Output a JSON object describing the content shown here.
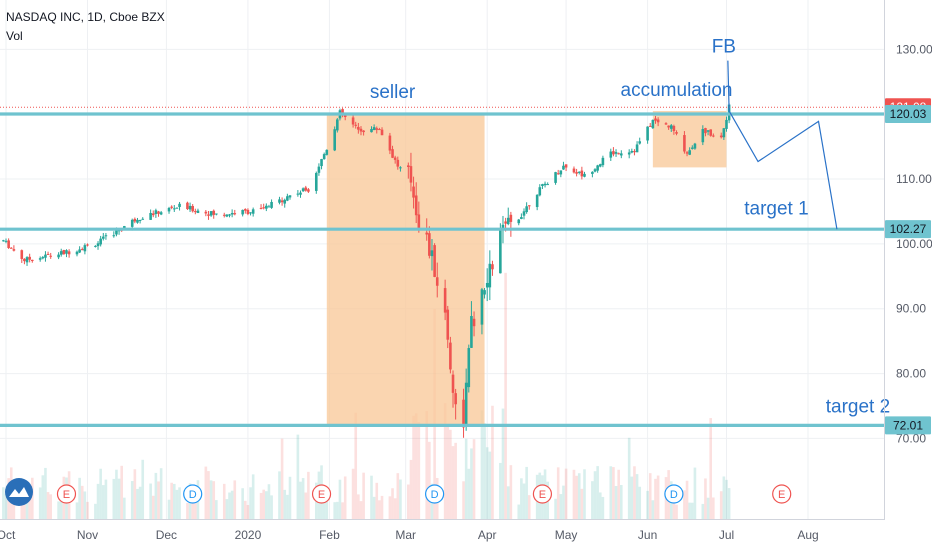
{
  "header": {
    "title": "NASDAQ INC, 1D, Cboe BZX",
    "indicator": "Vol"
  },
  "colors": {
    "up": "#26a69a",
    "down": "#ef5350",
    "level_line": "#6fc3cf",
    "zone_fill": "#f9c99a",
    "annotation": "#2a72c8",
    "price_tag": "#ef5350",
    "last_price_line": "#ef5350"
  },
  "icons": {
    "logo": "tradingview-cloud-icon",
    "earnings_marker": "E",
    "dividend_marker": "D"
  },
  "chart_data": {
    "type": "candlestick",
    "y_axis": {
      "ticks": [
        "130.00",
        "110.00",
        "100.00",
        "90.00",
        "80.00",
        "70.00"
      ],
      "ylim": [
        60.5,
        137
      ],
      "side": "right"
    },
    "x_axis": {
      "ticks": [
        "Oct",
        "Nov",
        "Dec",
        "2020",
        "Feb",
        "Mar",
        "Apr",
        "May",
        "Jun",
        "Jul",
        "Aug"
      ]
    },
    "grid": true,
    "last_price": {
      "label": "121.08",
      "value": 121.08
    },
    "levels": [
      {
        "label": "120.03",
        "value": 120.03
      },
      {
        "label": "102.27",
        "value": 102.27
      },
      {
        "label": "72.01",
        "value": 72.01
      }
    ],
    "zones": [
      {
        "name": "seller",
        "start": "Jan 31",
        "end": "Mar 31",
        "top": 120.0,
        "bottom": 72.0
      },
      {
        "name": "accumulation",
        "start": "Jun 03",
        "end": "Jul 01",
        "top": 120.5,
        "bottom": 111.8
      }
    ],
    "annotations": [
      {
        "text": "seller",
        "at": "Feb 25",
        "price": 122.5
      },
      {
        "text": "accumulation",
        "at": "Jun 12",
        "price": 122.8
      },
      {
        "text": "FB",
        "at": "Jun 30",
        "price": 129.5
      },
      {
        "text": "target 1",
        "at": "Jul 20",
        "price": 104.5
      },
      {
        "text": "target 2",
        "at": "Aug 20",
        "price": 74.0
      }
    ],
    "projection_path": [
      {
        "t": "Jul 02",
        "price": 120.5
      },
      {
        "t": "Jul 13",
        "price": 112.7
      },
      {
        "t": "Aug 05",
        "price": 118.9
      },
      {
        "t": "Aug 12",
        "price": 102.27
      }
    ],
    "event_markers": [
      {
        "type": "E",
        "at": "Oct 24"
      },
      {
        "type": "D",
        "at": "Dec 11"
      },
      {
        "type": "E",
        "at": "Jan 29"
      },
      {
        "type": "D",
        "at": "Mar 12"
      },
      {
        "type": "E",
        "at": "Apr 22"
      },
      {
        "type": "D",
        "at": "Jun 11"
      },
      {
        "type": "E",
        "at": "Jul 22"
      }
    ],
    "series": [
      {
        "name": "price",
        "anchors": [
          [
            "Sep 30",
            100.5
          ],
          [
            "Oct 08",
            97.5
          ],
          [
            "Oct 24",
            98.7
          ],
          [
            "Nov 05",
            100.2
          ],
          [
            "Nov 20",
            104.0
          ],
          [
            "Dec 06",
            105.8
          ],
          [
            "Dec 20",
            104.5
          ],
          [
            "Jan 06",
            105.2
          ],
          [
            "Jan 17",
            107.5
          ],
          [
            "Jan 24",
            108.5
          ],
          [
            "Jan 31",
            114.8
          ],
          [
            "Feb 05",
            120.2
          ],
          [
            "Feb 12",
            117.5
          ],
          [
            "Feb 20",
            117.8
          ],
          [
            "Feb 27",
            112.0
          ],
          [
            "Mar 03",
            110.0
          ],
          [
            "Mar 06",
            103.5
          ],
          [
            "Mar 09",
            100.5
          ],
          [
            "Mar 12",
            96.0
          ],
          [
            "Mar 16",
            89.0
          ],
          [
            "Mar 18",
            81.5
          ],
          [
            "Mar 20",
            74.5
          ],
          [
            "Mar 23",
            73.0
          ],
          [
            "Mar 26",
            87.5
          ],
          [
            "Mar 31",
            92.5
          ],
          [
            "Apr 06",
            101.5
          ],
          [
            "Apr 13",
            104.0
          ],
          [
            "Apr 20",
            108.0
          ],
          [
            "Apr 30",
            112.0
          ],
          [
            "May 08",
            110.5
          ],
          [
            "May 18",
            114.0
          ],
          [
            "May 27",
            114.5
          ],
          [
            "Jun 03",
            119.0
          ],
          [
            "Jun 10",
            118.0
          ],
          [
            "Jun 16",
            114.0
          ],
          [
            "Jun 22",
            117.5
          ],
          [
            "Jun 29",
            116.5
          ],
          [
            "Jul 02",
            121.08
          ]
        ]
      }
    ]
  }
}
